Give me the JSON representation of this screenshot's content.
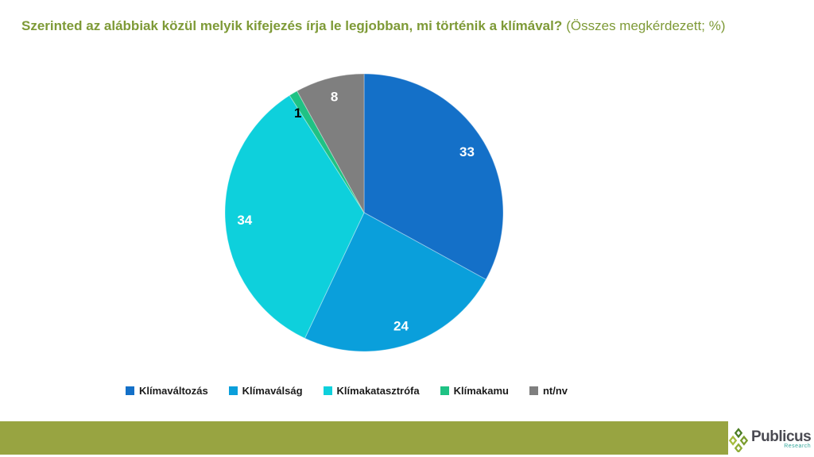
{
  "title": {
    "main": "Szerinted az alábbiak közül melyik kifejezés írja le legjobban, mi történik a klímával?",
    "suffix": "(Összes megkérdezett; %)",
    "color": "#7E9A37"
  },
  "chart_data": {
    "type": "pie",
    "title": "Szerinted az alábbiak közül melyik kifejezés írja le legjobban, mi történik a klímával? (Összes megkérdezett; %)",
    "categories": [
      "Klímaváltozás",
      "Klímaválság",
      "Klímakatasztrófa",
      "Klímakamu",
      "nt/nv"
    ],
    "values": [
      33,
      24,
      34,
      1,
      8
    ],
    "colors": [
      "#1470C8",
      "#0A9FDB",
      "#0ED0DC",
      "#1FC284",
      "#7F7F7F"
    ],
    "value_label_colors": [
      "#FFFFFF",
      "#FFFFFF",
      "#FFFFFF",
      "#000000",
      "#FFFFFF"
    ],
    "start_angle_deg": 0,
    "direction": "clockwise",
    "legend_position": "bottom",
    "label_radius_factor": 0.86,
    "label_angle_shift_deg": [
      0,
      0,
      0,
      -3,
      0
    ],
    "units": "%"
  },
  "footer": {
    "bar_color": "#98A441",
    "logo": {
      "name": "Publicus",
      "sub": "Research",
      "name_color": "#4A4A52",
      "sub_color": "#35A79B",
      "diamond_colors": [
        "#4C7D24",
        "#A5BC3E",
        "#7A9C2E",
        "#8FAC36"
      ]
    }
  }
}
